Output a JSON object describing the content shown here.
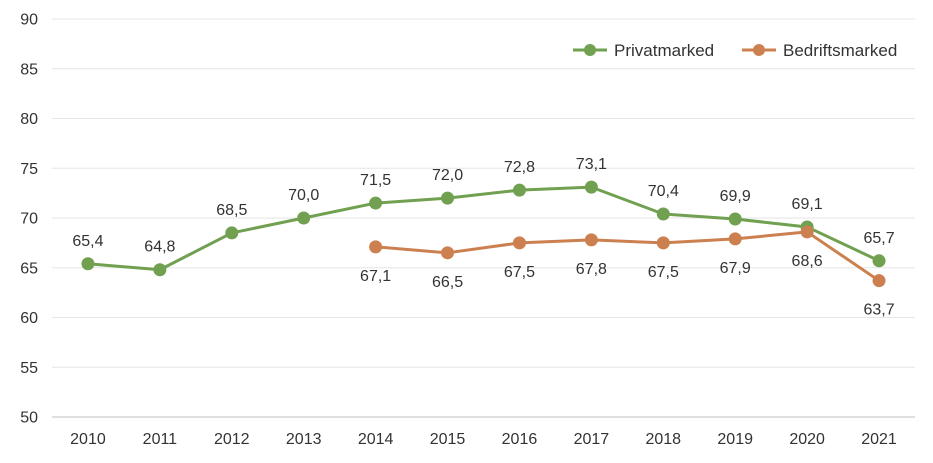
{
  "chart_data": {
    "type": "line",
    "categories": [
      "2010",
      "2011",
      "2012",
      "2013",
      "2014",
      "2015",
      "2016",
      "2017",
      "2018",
      "2019",
      "2020",
      "2021"
    ],
    "ylim": [
      50,
      90
    ],
    "yticks": [
      50,
      55,
      60,
      65,
      70,
      75,
      80,
      85,
      90
    ],
    "grid": true,
    "legend_position": "top-right",
    "series": [
      {
        "name": "Privatmarked",
        "color": "#70a050",
        "label_position": "above",
        "values": [
          65.4,
          64.8,
          68.5,
          70.0,
          71.5,
          72.0,
          72.8,
          73.1,
          70.4,
          69.9,
          69.1,
          65.7
        ],
        "labels": [
          "65,4",
          "64,8",
          "68,5",
          "70,0",
          "71,5",
          "72,0",
          "72,8",
          "73,1",
          "70,4",
          "69,9",
          "69,1",
          "65,7"
        ]
      },
      {
        "name": "Bedriftsmarked",
        "color": "#cc8050",
        "label_position": "below",
        "values": [
          null,
          null,
          null,
          null,
          67.1,
          66.5,
          67.5,
          67.8,
          67.5,
          67.9,
          68.6,
          63.7
        ],
        "labels": [
          null,
          null,
          null,
          null,
          "67,1",
          "66,5",
          "67,5",
          "67,8",
          "67,5",
          "67,9",
          "68,6",
          "63,7"
        ]
      }
    ]
  }
}
